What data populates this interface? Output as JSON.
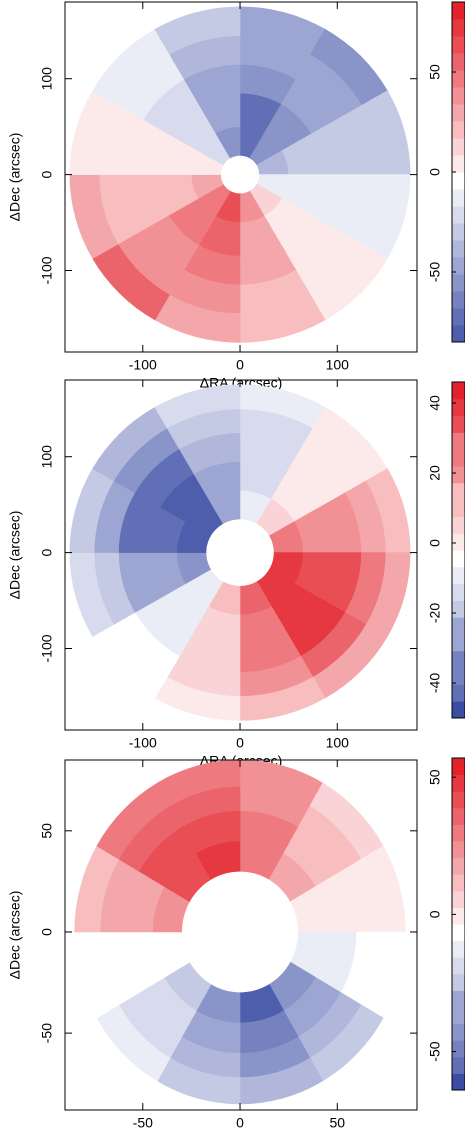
{
  "chart_data": [
    {
      "type": "polar-heatmap",
      "x_label": "ΔRA (arcsec)",
      "y_label": "ΔDec (arcsec)",
      "xlim": [
        -180,
        182
      ],
      "ylim": [
        -185,
        180
      ],
      "xticks": [
        -100,
        0,
        100
      ],
      "yticks": [
        -100,
        0,
        100
      ],
      "clim": [
        -85,
        85
      ],
      "cticks": [
        -50,
        0,
        50
      ],
      "colors": [
        "#3a4ca4",
        "#ffffff",
        "#e3222b"
      ],
      "radius_bins": [
        20,
        50,
        85,
        115,
        145,
        175
      ],
      "angle_bins": [
        0,
        30,
        60,
        90,
        120,
        150,
        180,
        210,
        240,
        270,
        300,
        330,
        360
      ],
      "values": [
        [
          -70,
          -55,
          -30,
          -5,
          15,
          40,
          65,
          55,
          30,
          5,
          -20,
          -50
        ],
        [
          -65,
          -50,
          -28,
          -8,
          12,
          38,
          60,
          50,
          28,
          5,
          -18,
          -45
        ],
        [
          -55,
          -45,
          -25,
          -8,
          10,
          30,
          50,
          45,
          25,
          5,
          -15,
          -40
        ],
        [
          -45,
          -45,
          -22,
          -6,
          8,
          25,
          40,
          45,
          28,
          8,
          -12,
          -30
        ],
        [
          -40,
          -55,
          -25,
          -5,
          8,
          22,
          35,
          60,
          35,
          10,
          -10,
          -25
        ]
      ]
    },
    {
      "type": "polar-heatmap",
      "x_label": "ΔRA (arcsec)",
      "y_label": "ΔDec (arcsec)",
      "xlim": [
        -180,
        182
      ],
      "ylim": [
        -185,
        180
      ],
      "xticks": [
        -100,
        0,
        100
      ],
      "yticks": [
        -100,
        0,
        100
      ],
      "clim": [
        -50,
        46
      ],
      "cticks": [
        -40,
        -20,
        0,
        20,
        40
      ],
      "colors": [
        "#3a4ca4",
        "#ffffff",
        "#e3222b"
      ],
      "radius_bins": [
        35,
        65,
        95,
        125,
        150,
        175
      ],
      "angle_bins": [
        0,
        30,
        60,
        90,
        120,
        150,
        180,
        210,
        240,
        270,
        300,
        330,
        360
      ],
      "values": [
        [
          -8,
          8,
          25,
          40,
          42,
          30,
          10,
          -8,
          -30,
          -45,
          -45,
          -28
        ],
        [
          -10,
          5,
          22,
          38,
          42,
          28,
          8,
          -6,
          -28,
          -42,
          -44,
          -26
        ],
        [
          -12,
          4,
          20,
          35,
          40,
          25,
          8,
          -5,
          -25,
          -40,
          -40,
          -22
        ],
        [
          -10,
          3,
          15,
          25,
          30,
          20,
          6,
          -4,
          -18,
          -28,
          -30,
          -18
        ],
        [
          -8,
          2,
          10,
          15,
          18,
          12,
          5,
          -3,
          -12,
          -18,
          -20,
          -12
        ]
      ]
    },
    {
      "type": "polar-heatmap",
      "x_label": "ΔRA (arcsec)",
      "y_label": "ΔDec (arcsec)",
      "xlim": [
        -90,
        91
      ],
      "ylim": [
        -88,
        85
      ],
      "xticks": [
        -50,
        0,
        50
      ],
      "yticks": [
        -50,
        0,
        50
      ],
      "clim": [
        -64,
        57
      ],
      "cticks": [
        -50,
        0,
        50
      ],
      "colors": [
        "#3a4ca4",
        "#ffffff",
        "#e3222b"
      ],
      "radius_bins": [
        30,
        45,
        60,
        72,
        85
      ],
      "angle_bins": [
        0,
        30,
        60,
        90,
        120,
        150,
        180,
        210,
        240,
        270,
        300,
        330,
        360
      ],
      "values": [
        [
          35,
          18,
          5,
          -10,
          -40,
          -55,
          -40,
          -20,
          -5,
          25,
          45,
          50
        ],
        [
          30,
          15,
          4,
          -8,
          -35,
          -48,
          -35,
          -18,
          -6,
          22,
          42,
          45
        ],
        [
          28,
          12,
          3,
          -6,
          -28,
          -40,
          -30,
          -15,
          -5,
          20,
          38,
          40
        ],
        [
          25,
          10,
          2,
          -5,
          -20,
          -30,
          -22,
          -12,
          -4,
          15,
          32,
          35
        ]
      ]
    }
  ]
}
